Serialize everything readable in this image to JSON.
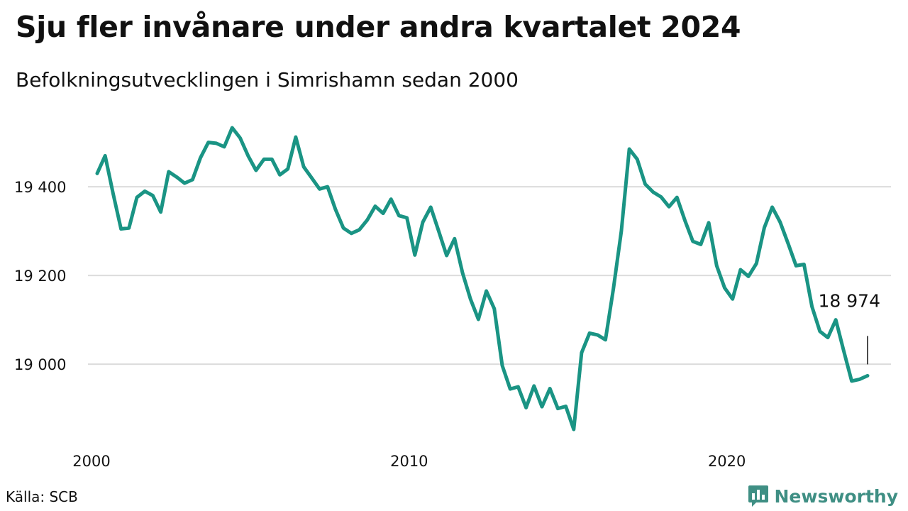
{
  "header": {
    "title": "Sju fler invånare under andra kvartalet 2024",
    "subtitle": "Befolkningsutvecklingen i Simrishamn sedan 2000"
  },
  "footer": {
    "source": "Källa: SCB",
    "brand": "Newsworthy",
    "brand_color": "#3f8f84"
  },
  "chart_data": {
    "type": "line",
    "x_start": 2000.0,
    "x_step": 0.25,
    "series": [
      {
        "color": "#1a9484",
        "values": [
          19430,
          19470,
          19385,
          19305,
          19307,
          19376,
          19390,
          19380,
          19343,
          19434,
          19422,
          19408,
          19416,
          19465,
          19500,
          19498,
          19490,
          19533,
          19510,
          19470,
          19437,
          19462,
          19462,
          19427,
          19440,
          19512,
          19445,
          19420,
          19395,
          19400,
          19349,
          19307,
          19295,
          19303,
          19325,
          19356,
          19340,
          19372,
          19335,
          19330,
          19246,
          19320,
          19354,
          19300,
          19245,
          19283,
          19206,
          19147,
          19101,
          19165,
          19125,
          18997,
          18944,
          18949,
          18902,
          18951,
          18904,
          18945,
          18900,
          18905,
          18853,
          19026,
          19070,
          19066,
          19055,
          19170,
          19300,
          19485,
          19462,
          19406,
          19388,
          19377,
          19355,
          19376,
          19324,
          19277,
          19270,
          19319,
          19222,
          19172,
          19147,
          19213,
          19198,
          19227,
          19308,
          19354,
          19320,
          19272,
          19222,
          19225,
          19130,
          19074,
          19060,
          19100,
          19030,
          18962,
          18966,
          18974
        ]
      }
    ],
    "last_label": "18 974",
    "yticks": [
      19000,
      19200,
      19400
    ],
    "ytick_labels": [
      "19 000",
      "19 200",
      "19 400"
    ],
    "xticks": [
      2000,
      2010,
      2020
    ],
    "xtick_labels": [
      "2000",
      "2010",
      "2020"
    ],
    "xlim": [
      2000.0,
      2024.25
    ],
    "ylim": [
      18853,
      19533
    ],
    "grid": true,
    "legend": "none"
  }
}
